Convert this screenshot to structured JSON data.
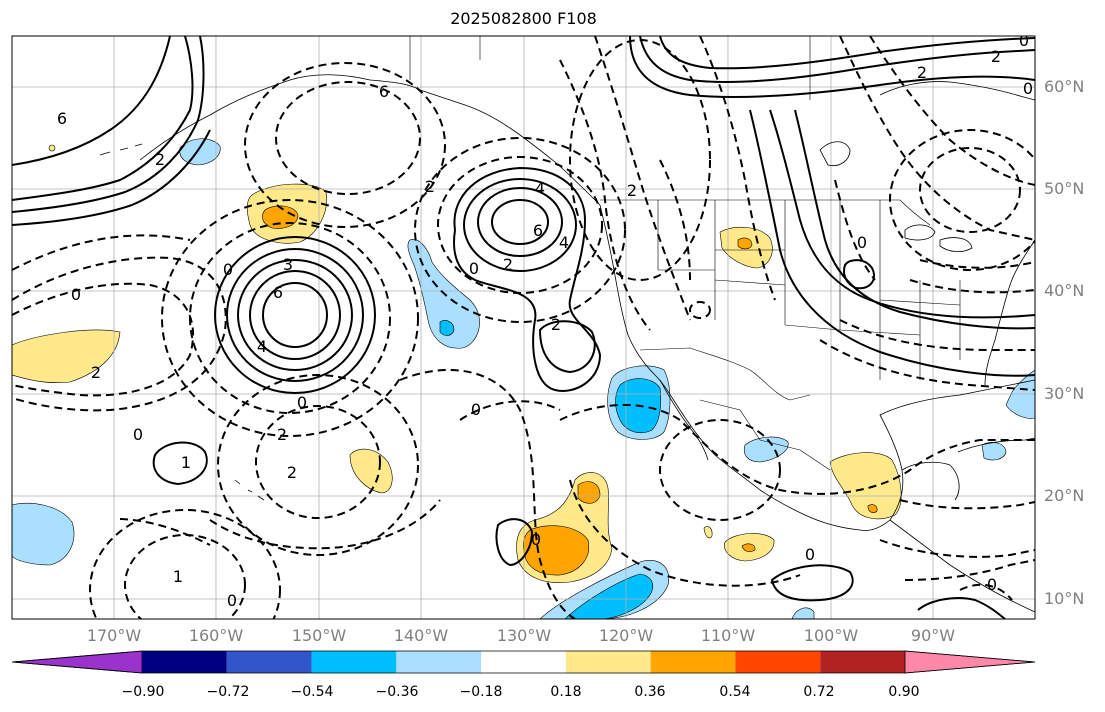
{
  "title": "2025082800 F108",
  "map": {
    "extent_lon": [
      -180,
      -80
    ],
    "extent_lat": [
      8,
      65
    ],
    "lat_labels": [
      "60°N",
      "50°N",
      "40°N",
      "30°N",
      "20°N",
      "10°N"
    ],
    "lon_labels": [
      "170°W",
      "160°W",
      "150°W",
      "140°W",
      "130°W",
      "120°W",
      "110°W",
      "100°W",
      "90°W"
    ],
    "contour_labels": [
      "6",
      "2",
      "3",
      "6",
      "4",
      "0",
      "2",
      "6",
      "4",
      "2",
      "4",
      "6",
      "2",
      "0",
      "0",
      "0",
      "2",
      "2",
      "1",
      "0",
      "0",
      "2",
      "0",
      "0",
      "0",
      "2",
      "1",
      "0",
      "2",
      "2",
      "0",
      "0",
      "0"
    ]
  },
  "colorbar": {
    "colors": [
      "#9933cc",
      "#000080",
      "#3355cc",
      "#00bfff",
      "#aadfff",
      "#ffffff",
      "#ffe98a",
      "#ffa500",
      "#ff4500",
      "#b22222",
      "#ff88aa"
    ],
    "tick_labels": [
      "−0.90",
      "−0.72",
      "−0.54",
      "−0.36",
      "−0.18",
      "0.18",
      "0.36",
      "0.54",
      "0.72",
      "0.90"
    ]
  },
  "colors": {
    "light_blue": "#aadfff",
    "deep_sky_blue": "#00bfff",
    "light_yellow": "#ffe98a",
    "orange": "#ffa500",
    "grid": "#b0b0b0",
    "label_gray": "#808080"
  }
}
